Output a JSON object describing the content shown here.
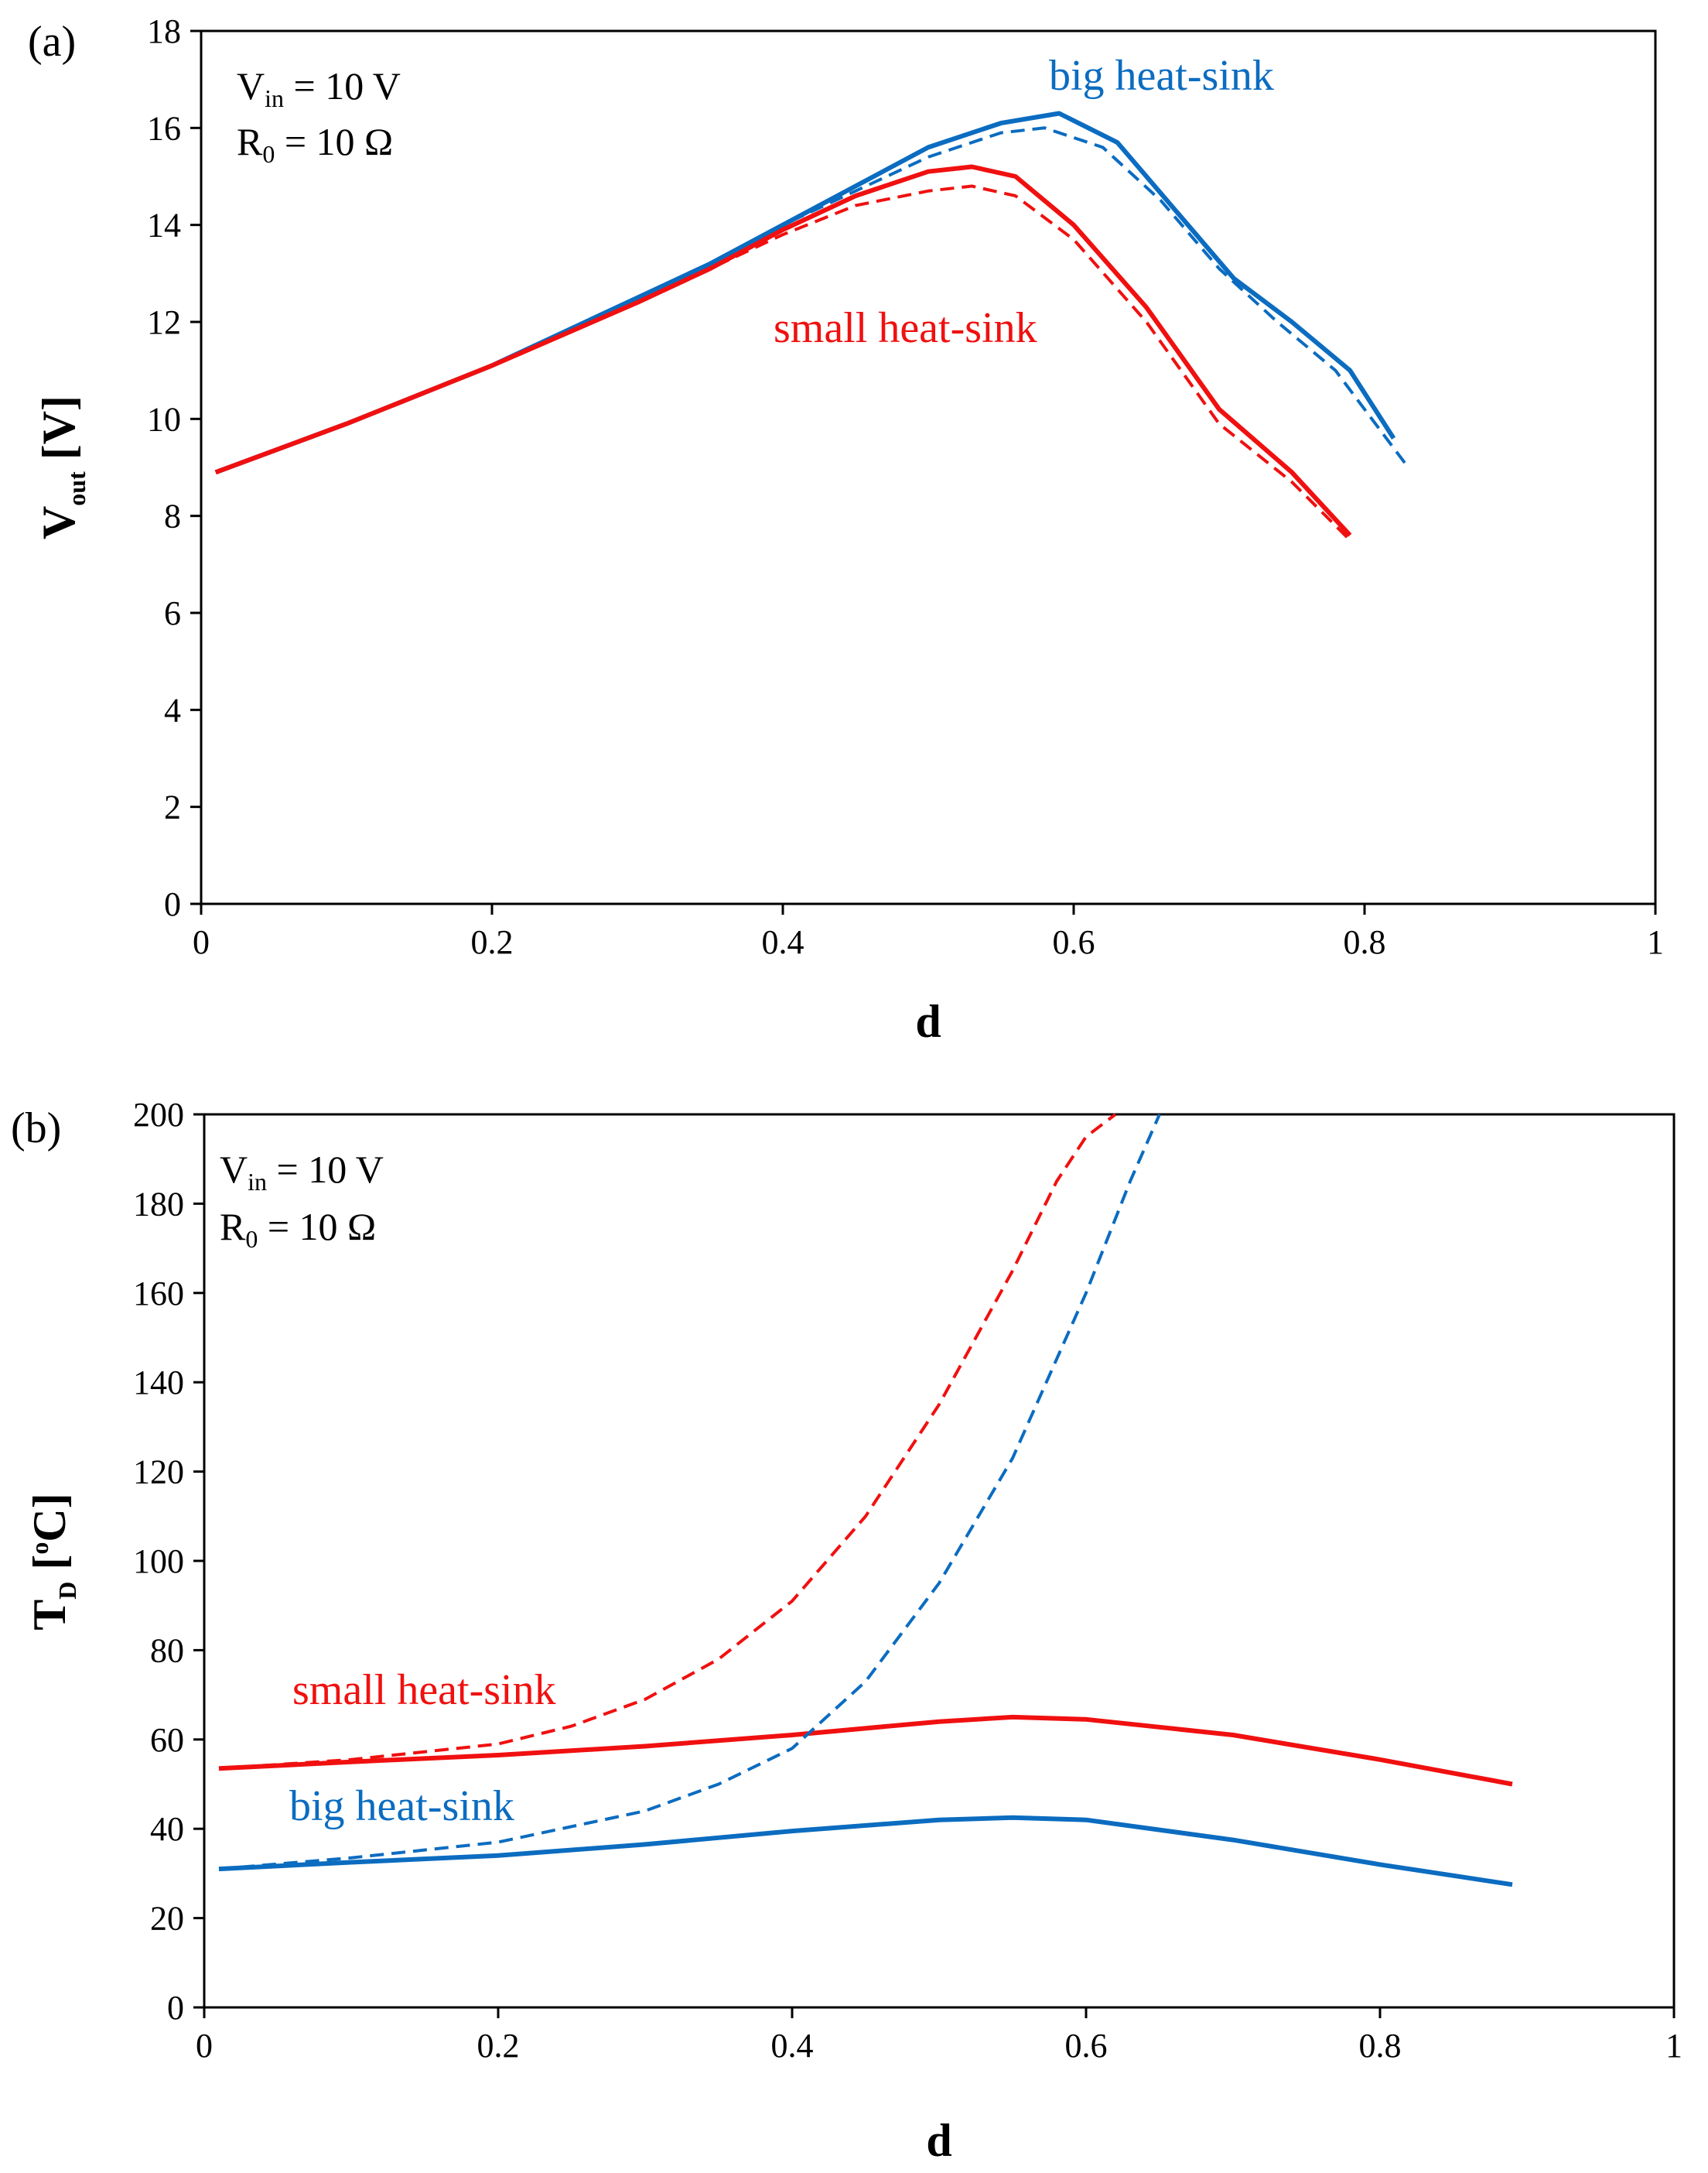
{
  "colors": {
    "blue": "#0b6cc0",
    "red": "#f01010",
    "axis": "#000000"
  },
  "chart_data": [
    {
      "type": "line",
      "panel_label": "(a)",
      "xlabel": "d",
      "ylabel": {
        "main": "V",
        "sub": "out",
        "unit": " [V]"
      },
      "xlim": [
        0,
        1
      ],
      "ylim": [
        0,
        18
      ],
      "x_ticks": [
        "0",
        "0.2",
        "0.4",
        "0.6",
        "0.8",
        "1"
      ],
      "x_tick_values": [
        0,
        0.2,
        0.4,
        0.6,
        0.8,
        1
      ],
      "y_ticks": [
        "0",
        "2",
        "4",
        "6",
        "8",
        "10",
        "12",
        "14",
        "16",
        "18"
      ],
      "y_tick_values": [
        0,
        2,
        4,
        6,
        8,
        10,
        12,
        14,
        16,
        18
      ],
      "params": {
        "vin": {
          "main": "V",
          "sub": "in",
          "rest": " = 10 V"
        },
        "r0": {
          "main": "R",
          "sub": "0",
          "rest": " = 10 Ω"
        }
      },
      "labels": {
        "big": "big heat-sink",
        "small": "small heat-sink"
      },
      "series": [
        {
          "name": "big heat-sink (solid)",
          "color": "blue",
          "dash": false,
          "x": [
            0.01,
            0.1,
            0.2,
            0.3,
            0.35,
            0.4,
            0.45,
            0.5,
            0.55,
            0.59,
            0.63,
            0.67,
            0.71,
            0.75,
            0.79,
            0.82
          ],
          "y": [
            8.9,
            9.9,
            11.1,
            12.5,
            13.2,
            14.0,
            14.8,
            15.6,
            16.1,
            16.3,
            15.7,
            14.3,
            12.9,
            12.0,
            11.0,
            9.6
          ]
        },
        {
          "name": "big heat-sink (dashed)",
          "color": "blue",
          "dash": true,
          "x": [
            0.01,
            0.1,
            0.2,
            0.3,
            0.35,
            0.4,
            0.45,
            0.5,
            0.55,
            0.58,
            0.62,
            0.66,
            0.7,
            0.74,
            0.78,
            0.83
          ],
          "y": [
            8.9,
            9.9,
            11.1,
            12.5,
            13.2,
            14.0,
            14.7,
            15.4,
            15.9,
            16.0,
            15.6,
            14.5,
            13.1,
            12.0,
            11.0,
            9.0
          ]
        },
        {
          "name": "small heat-sink (solid)",
          "color": "red",
          "dash": false,
          "x": [
            0.01,
            0.1,
            0.2,
            0.3,
            0.35,
            0.4,
            0.45,
            0.5,
            0.53,
            0.56,
            0.6,
            0.65,
            0.7,
            0.75,
            0.79
          ],
          "y": [
            8.9,
            9.9,
            11.1,
            12.4,
            13.1,
            13.9,
            14.6,
            15.1,
            15.2,
            15.0,
            14.0,
            12.3,
            10.2,
            8.9,
            7.6
          ]
        },
        {
          "name": "small heat-sink (dashed)",
          "color": "red",
          "dash": true,
          "x": [
            0.01,
            0.1,
            0.2,
            0.3,
            0.35,
            0.4,
            0.45,
            0.5,
            0.53,
            0.56,
            0.6,
            0.65,
            0.7,
            0.75,
            0.79
          ],
          "y": [
            8.9,
            9.9,
            11.1,
            12.4,
            13.1,
            13.8,
            14.4,
            14.7,
            14.8,
            14.6,
            13.7,
            12.0,
            9.9,
            8.7,
            7.5
          ]
        }
      ]
    },
    {
      "type": "line",
      "panel_label": "(b)",
      "xlabel": "d",
      "ylabel": {
        "main": "T",
        "sub": "D",
        "unit": " [",
        "sup": "o",
        "unit2": "C]"
      },
      "xlim": [
        0,
        1
      ],
      "ylim": [
        0,
        200
      ],
      "x_ticks": [
        "0",
        "0.2",
        "0.4",
        "0.6",
        "0.8",
        "1"
      ],
      "x_tick_values": [
        0,
        0.2,
        0.4,
        0.6,
        0.8,
        1
      ],
      "y_ticks": [
        "0",
        "20",
        "40",
        "60",
        "80",
        "100",
        "120",
        "140",
        "160",
        "180",
        "200"
      ],
      "y_tick_values": [
        0,
        20,
        40,
        60,
        80,
        100,
        120,
        140,
        160,
        180,
        200
      ],
      "params": {
        "vin": {
          "main": "V",
          "sub": "in",
          "rest": " = 10 V"
        },
        "r0": {
          "main": "R",
          "sub": "0",
          "rest": " = 10 Ω"
        }
      },
      "labels": {
        "big": "big heat-sink",
        "small": "small heat-sink"
      },
      "series": [
        {
          "name": "small heat-sink (solid)",
          "color": "red",
          "dash": false,
          "x": [
            0.01,
            0.1,
            0.2,
            0.3,
            0.4,
            0.5,
            0.55,
            0.6,
            0.7,
            0.8,
            0.89
          ],
          "y": [
            53.5,
            55,
            56.5,
            58.5,
            61,
            64,
            65,
            64.5,
            61,
            55.5,
            50
          ]
        },
        {
          "name": "small heat-sink (dashed)",
          "color": "red",
          "dash": true,
          "x": [
            0.01,
            0.1,
            0.2,
            0.25,
            0.3,
            0.35,
            0.4,
            0.45,
            0.5,
            0.55,
            0.58,
            0.6,
            0.62
          ],
          "y": [
            53.5,
            55.5,
            59,
            63,
            69,
            78,
            91,
            110,
            135,
            165,
            185,
            195,
            200
          ]
        },
        {
          "name": "big heat-sink (solid)",
          "color": "blue",
          "dash": false,
          "x": [
            0.01,
            0.1,
            0.2,
            0.3,
            0.4,
            0.5,
            0.55,
            0.6,
            0.7,
            0.8,
            0.89
          ],
          "y": [
            31,
            32.5,
            34,
            36.5,
            39.5,
            42,
            42.5,
            42,
            37.5,
            32,
            27.5
          ]
        },
        {
          "name": "big heat-sink (dashed)",
          "color": "blue",
          "dash": true,
          "x": [
            0.01,
            0.1,
            0.2,
            0.3,
            0.35,
            0.4,
            0.45,
            0.5,
            0.55,
            0.6,
            0.63,
            0.65
          ],
          "y": [
            31,
            33.5,
            37,
            44,
            50,
            58,
            73,
            95,
            123,
            160,
            185,
            200
          ]
        }
      ]
    }
  ]
}
